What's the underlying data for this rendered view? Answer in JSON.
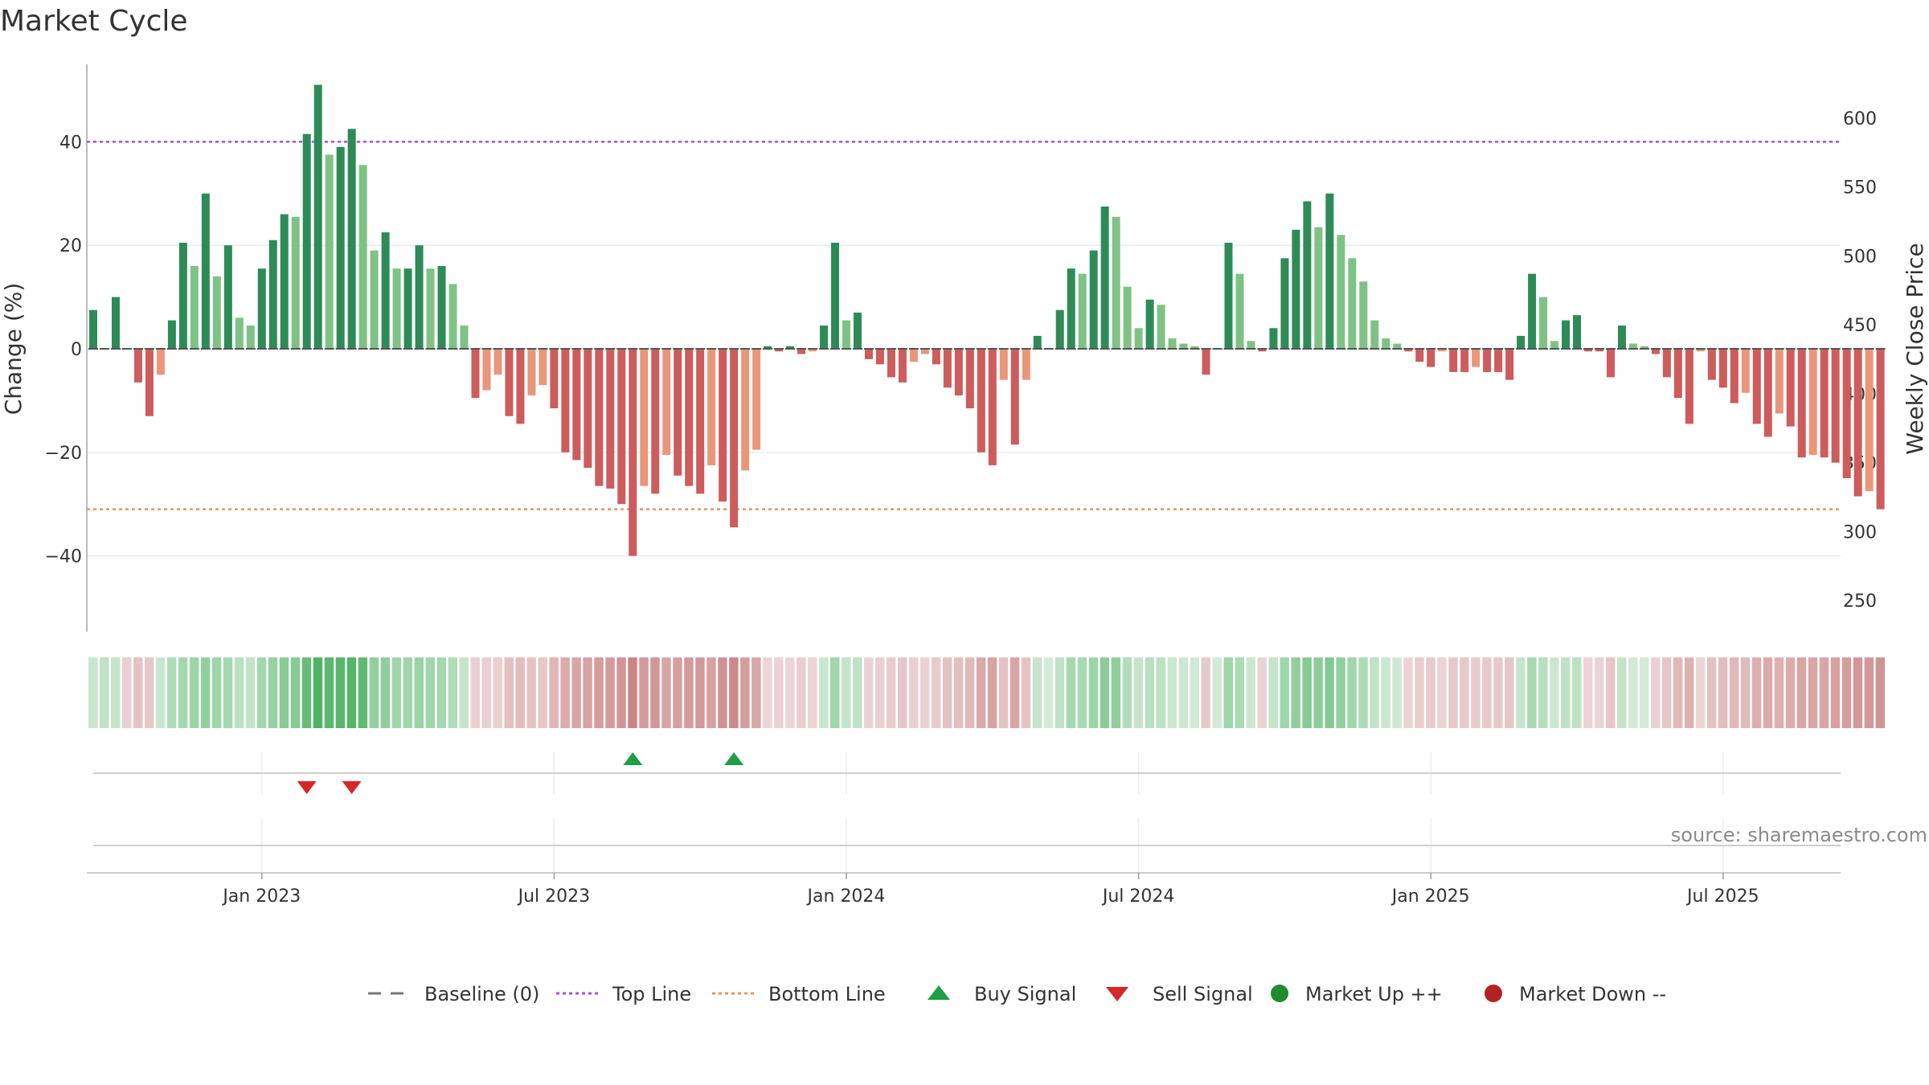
{
  "chart_data": {
    "type": "bar",
    "title": "Market Cycle",
    "ylabel": "Change (%)",
    "y2label": "Weekly Close Price",
    "ylim": [
      -55,
      55
    ],
    "y2lim": [
      225,
      640
    ],
    "yticks": [
      -40,
      -20,
      0,
      20,
      40
    ],
    "y2ticks": [
      250,
      300,
      350,
      400,
      450,
      500,
      550,
      600
    ],
    "x_tick_labels": [
      "Jan 2023",
      "Jul 2023",
      "Jan 2024",
      "Jul 2024",
      "Jan 2025",
      "Jul 2025"
    ],
    "x_tick_weeks": [
      15,
      41,
      67,
      93,
      119,
      145
    ],
    "top_line": 40,
    "bottom_line": -31,
    "values": [
      7.5,
      0,
      10,
      0,
      -6.5,
      -13,
      -5,
      5.5,
      20.5,
      16,
      30,
      14,
      20,
      6,
      4.5,
      15.5,
      21,
      26,
      25.5,
      41.5,
      51,
      37.5,
      39,
      42.5,
      35.5,
      19,
      22.5,
      15.5,
      15.5,
      20,
      15.5,
      16,
      12.5,
      4.5,
      -9.5,
      -8,
      -5,
      -13,
      -14.5,
      -9,
      -7,
      -11.5,
      -20,
      -21.5,
      -23,
      -26.5,
      -27,
      -30,
      -40,
      -26.5,
      -28,
      -20.5,
      -24.5,
      -26.5,
      -28,
      -22.5,
      -29.5,
      -34.5,
      -23.5,
      -19.5,
      0.5,
      -0.5,
      0.5,
      -1,
      -0.5,
      4.5,
      20.5,
      5.5,
      7,
      -2,
      -3,
      -5.5,
      -6.5,
      -2.5,
      -1,
      -3,
      -7.5,
      -9,
      -11.5,
      -20,
      -22.5,
      -6,
      -18.5,
      -6,
      2.5,
      0,
      7.5,
      15.5,
      14.5,
      19,
      27.5,
      25.5,
      12,
      4,
      9.5,
      8.5,
      2,
      1,
      0.5,
      -5,
      0,
      20.5,
      14.5,
      1.5,
      -0.5,
      4,
      17.5,
      23,
      28.5,
      23.5,
      30,
      22,
      17.5,
      13,
      5.5,
      2,
      1,
      -0.5,
      -2.5,
      -3.5,
      -0.5,
      -4.5,
      -4.5,
      -3.5,
      -4.5,
      -4.5,
      -6,
      2.5,
      14.5,
      10,
      1.5,
      5.5,
      6.5,
      -0.5,
      -0.5,
      -5.5,
      4.5,
      1,
      0.5,
      -1,
      -5.5,
      -9.5,
      -14.5,
      -0.5,
      -6,
      -7.5,
      -10.5,
      -8.5,
      -14.5,
      -17,
      -12.5,
      -15,
      -21,
      -20.5,
      -21,
      -22,
      -25,
      -28.5,
      -27.5,
      -31
    ],
    "heat_colors": [
      "#c9e6cf",
      "#c0e2c6",
      "#c6e4ca",
      "#e9cfcf",
      "#e6c2c2",
      "#e7c8c8",
      "#c9e6cf",
      "#aedcb8",
      "#a3d7ad",
      "#9bd4a6",
      "#94d09f",
      "#9fd6aa",
      "#a5d8af",
      "#b9e0c1",
      "#c2e3c8",
      "#a3d7ad",
      "#96d1a1",
      "#8acb96",
      "#87ca94",
      "#67bd78",
      "#4fb364",
      "#5cb86e",
      "#58b66b",
      "#56b569",
      "#61ba73",
      "#93cf9e",
      "#90ce9b",
      "#a1d6ab",
      "#a1d6ab",
      "#9bd3a5",
      "#a1d6ab",
      "#a6d8b0",
      "#b1ddba",
      "#c6e4ca",
      "#e9cfcf",
      "#eacfcf",
      "#eccece",
      "#e4c0c0",
      "#e3bdbd",
      "#e6c3c3",
      "#e8c6c6",
      "#e0b6b6",
      "#dbaaaa",
      "#d9a6a6",
      "#d8a3a3",
      "#d59d9d",
      "#d49b9b",
      "#d29595",
      "#ca8585",
      "#d49b9b",
      "#d29797",
      "#d9a6a6",
      "#d5a0a0",
      "#d49b9b",
      "#d39898",
      "#d8a2a2",
      "#d09393",
      "#cc8a8a",
      "#d59e9e",
      "#d9a7a7",
      "#eed6d6",
      "#ecd2d2",
      "#edd5d5",
      "#ebcfcf",
      "#edd3d3",
      "#c9e6cf",
      "#9fd6aa",
      "#c3e4c9",
      "#c0e2c6",
      "#ead3d3",
      "#e9d0d0",
      "#e8cbcb",
      "#e6c7c7",
      "#eacfcf",
      "#ebd2d2",
      "#e8cbcb",
      "#e4c2c2",
      "#e3bfbf",
      "#e1b9b9",
      "#d9a8a8",
      "#d7a2a2",
      "#e4c2c2",
      "#d8a5a5",
      "#e5c3c3",
      "#c6e5cc",
      "#d3ebd7",
      "#bfe2c5",
      "#a6d8b0",
      "#a9d9b2",
      "#9cd4a7",
      "#8dcc98",
      "#91ce9c",
      "#b2ddbb",
      "#c6e4ca",
      "#b8e0c0",
      "#bce1c3",
      "#cae7cf",
      "#cde8d2",
      "#d0ead5",
      "#e7caca",
      "#d2ead6",
      "#9fd6aa",
      "#abdbb4",
      "#cce8d1",
      "#ead3d3",
      "#c3e4c9",
      "#9fd6aa",
      "#91ce9c",
      "#87ca94",
      "#8fcc99",
      "#85c992",
      "#93cf9e",
      "#a0d6ab",
      "#acdab5",
      "#c0e2c6",
      "#cae7cf",
      "#cde8d2",
      "#ecd4d4",
      "#e9cdcd",
      "#e8cbcb",
      "#ecd4d4",
      "#e7c9c9",
      "#e7c9c9",
      "#e8cbcb",
      "#e7c9c9",
      "#e7c9c9",
      "#e5c5c5",
      "#c6e5cc",
      "#a9d9b2",
      "#b6dfbe",
      "#cbe7d0",
      "#c0e2c6",
      "#bde1c3",
      "#ecd4d4",
      "#ecd4d4",
      "#e6c6c6",
      "#c3e4c9",
      "#d0ead5",
      "#d3ebd7",
      "#ead0d0",
      "#e5c5c5",
      "#e1b8b8",
      "#deb1b1",
      "#ecd4d4",
      "#e4c2c2",
      "#e2bebe",
      "#e0b8b8",
      "#e1bbbb",
      "#ddaeae",
      "#dcabab",
      "#deb0b0",
      "#dcacac",
      "#d9a5a5",
      "#d9a6a6",
      "#d9a5a5",
      "#d8a2a2",
      "#d59e9e",
      "#d39898",
      "#d39999",
      "#d09494"
    ],
    "buy_signal_weeks": [
      48,
      57
    ],
    "sell_signal_weeks": [
      19,
      23
    ]
  },
  "legend": [
    {
      "label": "Baseline (0)",
      "kind": "dash",
      "color": "#777777"
    },
    {
      "label": "Top Line",
      "kind": "dotted",
      "color": "#9b59d0"
    },
    {
      "label": "Bottom Line",
      "kind": "dotted",
      "color": "#e8955e"
    },
    {
      "label": "Buy Signal",
      "kind": "triangle-up",
      "color": "#1e9e46"
    },
    {
      "label": "Sell Signal",
      "kind": "triangle-down",
      "color": "#d62728"
    },
    {
      "label": "Market Up ++",
      "kind": "circle",
      "color": "#1f8b2e"
    },
    {
      "label": "Market Down --",
      "kind": "circle",
      "color": "#b22222"
    }
  ],
  "colors": {
    "up_dark": "#2e8b57",
    "up_light": "#7fc285",
    "down_dark": "#cd5c5c",
    "down_light": "#e9967a",
    "top_line": "#9b59d0",
    "bottom_line": "#e8955e"
  },
  "source": "source: sharemaestro.com"
}
